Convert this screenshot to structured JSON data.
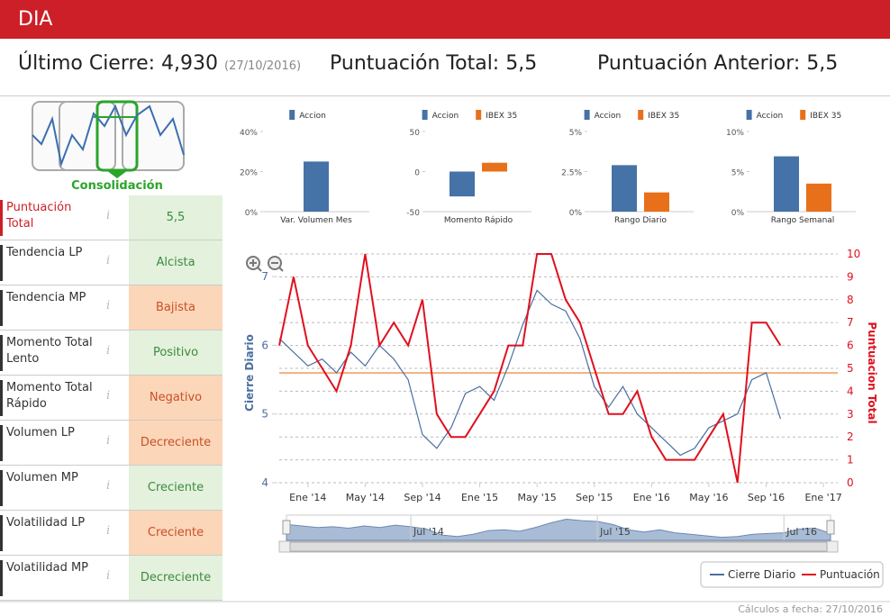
{
  "header": {
    "title": "DIA"
  },
  "summary": {
    "last_close_label": "Último Cierre:",
    "last_close": "4,930",
    "last_close_date": "(27/10/2016)",
    "total_label": "Puntuación Total:",
    "total": "5,5",
    "previous_label": "Puntuación Anterior:",
    "previous": "5,5"
  },
  "pattern": {
    "label": "Consolidación"
  },
  "info_icon": "i",
  "indicators": [
    {
      "label": "Puntuación Total",
      "value": "5,5",
      "color": "#e3f1dd",
      "text_color": "#3c8c3c"
    },
    {
      "label": "Tendencia LP",
      "value": "Alcista",
      "color": "#e3f1dd",
      "text_color": "#3c8c3c"
    },
    {
      "label": "Tendencia MP",
      "value": "Bajista",
      "color": "#fcd6b8",
      "text_color": "#c8502a"
    },
    {
      "label": "Momento Total Lento",
      "value": "Positivo",
      "color": "#e3f1dd",
      "text_color": "#3c8c3c"
    },
    {
      "label": "Momento Total Rápido",
      "value": "Negativo",
      "color": "#fcd6b8",
      "text_color": "#c8502a"
    },
    {
      "label": "Volumen LP",
      "value": "Decreciente",
      "color": "#fcd6b8",
      "text_color": "#c8502a"
    },
    {
      "label": "Volumen MP",
      "value": "Creciente",
      "color": "#e3f1dd",
      "text_color": "#3c8c3c"
    },
    {
      "label": "Volatilidad LP",
      "value": "Creciente",
      "color": "#fcd6b8",
      "text_color": "#c8502a"
    },
    {
      "label": "Volatilidad MP",
      "value": "Decreciente",
      "color": "#e3f1dd",
      "text_color": "#3c8c3c"
    }
  ],
  "chart_data": [
    {
      "type": "bar",
      "categories": [
        "Var. Volumen Mes"
      ],
      "series": [
        {
          "name": "Accion",
          "color": "#4572a7",
          "values": [
            25
          ]
        }
      ],
      "ylim": [
        0,
        40
      ],
      "yticks": [
        {
          "value": 0,
          "label": "0%"
        },
        {
          "value": 20,
          "label": "20%"
        },
        {
          "value": 40,
          "label": "40%"
        }
      ]
    },
    {
      "type": "bar",
      "categories": [
        "Momento Rápido"
      ],
      "series": [
        {
          "name": "Accion",
          "color": "#4572a7",
          "values": [
            -31
          ]
        },
        {
          "name": "IBEX 35",
          "color": "#e8701a",
          "values": [
            11
          ]
        }
      ],
      "ylim": [
        -50,
        50
      ],
      "yticks": [
        -50,
        0,
        50
      ]
    },
    {
      "type": "bar",
      "categories": [
        "Rango Diario"
      ],
      "series": [
        {
          "name": "Accion",
          "color": "#4572a7",
          "values": [
            2.9
          ]
        },
        {
          "name": "IBEX 35",
          "color": "#e8701a",
          "values": [
            1.2
          ]
        }
      ],
      "ylim": [
        0,
        5
      ],
      "yticks": [
        {
          "value": 0,
          "label": "0%"
        },
        {
          "value": 2.5,
          "label": "2.5%"
        },
        {
          "value": 5,
          "label": "5%"
        }
      ]
    },
    {
      "type": "bar",
      "categories": [
        "Rango Semanal"
      ],
      "series": [
        {
          "name": "Accion",
          "color": "#4572a7",
          "values": [
            6.9
          ]
        },
        {
          "name": "IBEX 35",
          "color": "#e8701a",
          "values": [
            3.5
          ]
        }
      ],
      "ylim": [
        0,
        10
      ],
      "yticks": [
        {
          "value": 0,
          "label": "0%"
        },
        {
          "value": 5,
          "label": "5%"
        },
        {
          "value": 10,
          "label": "10%"
        }
      ]
    },
    {
      "type": "line",
      "x": [
        "2013-11",
        "2013-12",
        "2014-01",
        "2014-02",
        "2014-03",
        "2014-04",
        "2014-05",
        "2014-06",
        "2014-07",
        "2014-08",
        "2014-09",
        "2014-10",
        "2014-11",
        "2014-12",
        "2015-01",
        "2015-02",
        "2015-03",
        "2015-04",
        "2015-05",
        "2015-06",
        "2015-07",
        "2015-08",
        "2015-09",
        "2015-10",
        "2015-11",
        "2015-12",
        "2016-01",
        "2016-02",
        "2016-03",
        "2016-04",
        "2016-05",
        "2016-06",
        "2016-07",
        "2016-08",
        "2016-09",
        "2016-10"
      ],
      "series": [
        {
          "name": "Cierre Diario",
          "color": "#4a6fa0",
          "values": [
            6.1,
            5.9,
            5.7,
            5.8,
            5.6,
            5.9,
            5.7,
            6.0,
            5.8,
            5.5,
            4.7,
            4.5,
            4.8,
            5.3,
            5.4,
            5.2,
            5.7,
            6.3,
            6.8,
            6.6,
            6.5,
            6.1,
            5.4,
            5.1,
            5.4,
            5.0,
            4.8,
            4.6,
            4.4,
            4.5,
            4.8,
            4.9,
            5.0,
            5.5,
            5.6,
            4.93
          ]
        },
        {
          "name": "Puntuación",
          "color": "#e0101e",
          "axis": "y2",
          "values": [
            6,
            9,
            6,
            5,
            4,
            6,
            10,
            6,
            7,
            6,
            8,
            3,
            2,
            2,
            3,
            4,
            6,
            6,
            10,
            10,
            8,
            7,
            5,
            3,
            3,
            4,
            2,
            1,
            1,
            1,
            2,
            3,
            0,
            7,
            7,
            6
          ]
        }
      ],
      "xlim": [
        "2013-11",
        "2017-02"
      ],
      "xticks": [
        {
          "value": "2014-01",
          "label": "Ene '14"
        },
        {
          "value": "2014-05",
          "label": "May '14"
        },
        {
          "value": "2014-09",
          "label": "Sep '14"
        },
        {
          "value": "2015-01",
          "label": "Ene '15"
        },
        {
          "value": "2015-05",
          "label": "May '15"
        },
        {
          "value": "2015-09",
          "label": "Sep '15"
        },
        {
          "value": "2016-01",
          "label": "Ene '16"
        },
        {
          "value": "2016-05",
          "label": "May '16"
        },
        {
          "value": "2016-09",
          "label": "Sep '16"
        },
        {
          "value": "2017-01",
          "label": "Ene '17"
        }
      ],
      "ylim": [
        4,
        7.33
      ],
      "yticks": [
        4,
        5,
        6,
        7
      ],
      "y2lim": [
        0,
        10
      ],
      "y2ticks": [
        0,
        1,
        2,
        3,
        4,
        5,
        6,
        7,
        8,
        9,
        10
      ],
      "ylabel": "Cierre Diario",
      "y2label": "Puntuacion Total",
      "reference_line": {
        "value": 4.8,
        "axis": "y2",
        "color": "#f0b080"
      },
      "grid": true,
      "legend": "bottom-right",
      "navigator_ticks": [
        {
          "value": "2014-07",
          "label": "Jul '14"
        },
        {
          "value": "2015-07",
          "label": "Jul '15"
        },
        {
          "value": "2016-07",
          "label": "Jul '16"
        }
      ]
    }
  ],
  "footer": {
    "text": "Cálculos a fecha: 27/10/2016"
  }
}
